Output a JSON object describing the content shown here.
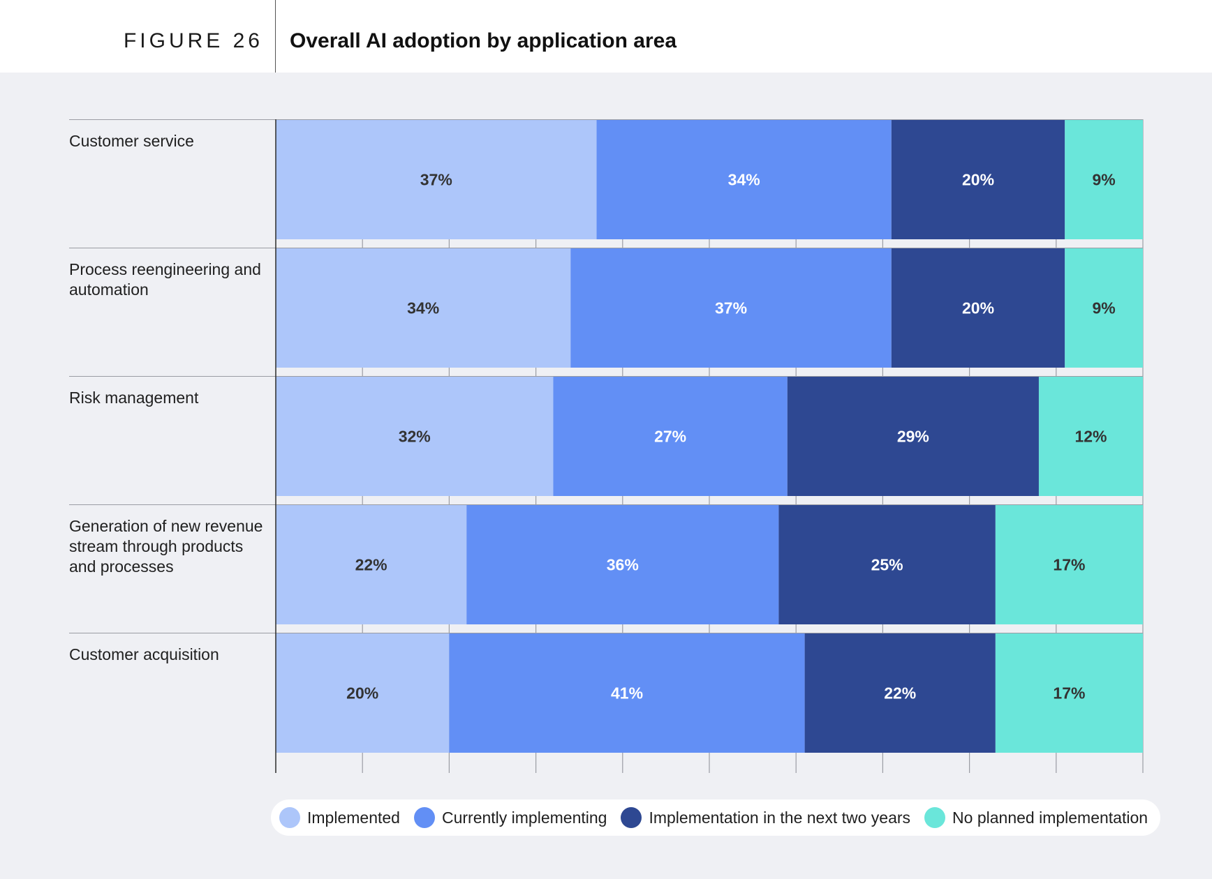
{
  "header": {
    "figure_label": "FIGURE 26",
    "title": "Overall AI adoption by application area"
  },
  "chart_data": {
    "type": "bar",
    "orientation": "horizontal",
    "stacked": true,
    "value_unit": "%",
    "xlim": [
      0,
      100
    ],
    "grid": true,
    "legend_position": "bottom-right",
    "categories": [
      "Customer service",
      "Process reengineering and automation",
      "Risk management",
      "Generation of new revenue stream through products and processes",
      "Customer acquisition"
    ],
    "series": [
      {
        "name": "Implemented",
        "color": "#adc6fa",
        "label_color": "#333333",
        "values": [
          37,
          34,
          32,
          22,
          20
        ]
      },
      {
        "name": "Currently implementing",
        "color": "#628ff5",
        "label_color": "#ffffff",
        "values": [
          34,
          37,
          27,
          36,
          41
        ]
      },
      {
        "name": "Implementation in the next two years",
        "color": "#2e4892",
        "label_color": "#ffffff",
        "values": [
          20,
          20,
          29,
          25,
          22
        ]
      },
      {
        "name": "No planned implementation",
        "color": "#6ae6da",
        "label_color": "#333333",
        "values": [
          9,
          9,
          12,
          17,
          17
        ]
      }
    ]
  }
}
